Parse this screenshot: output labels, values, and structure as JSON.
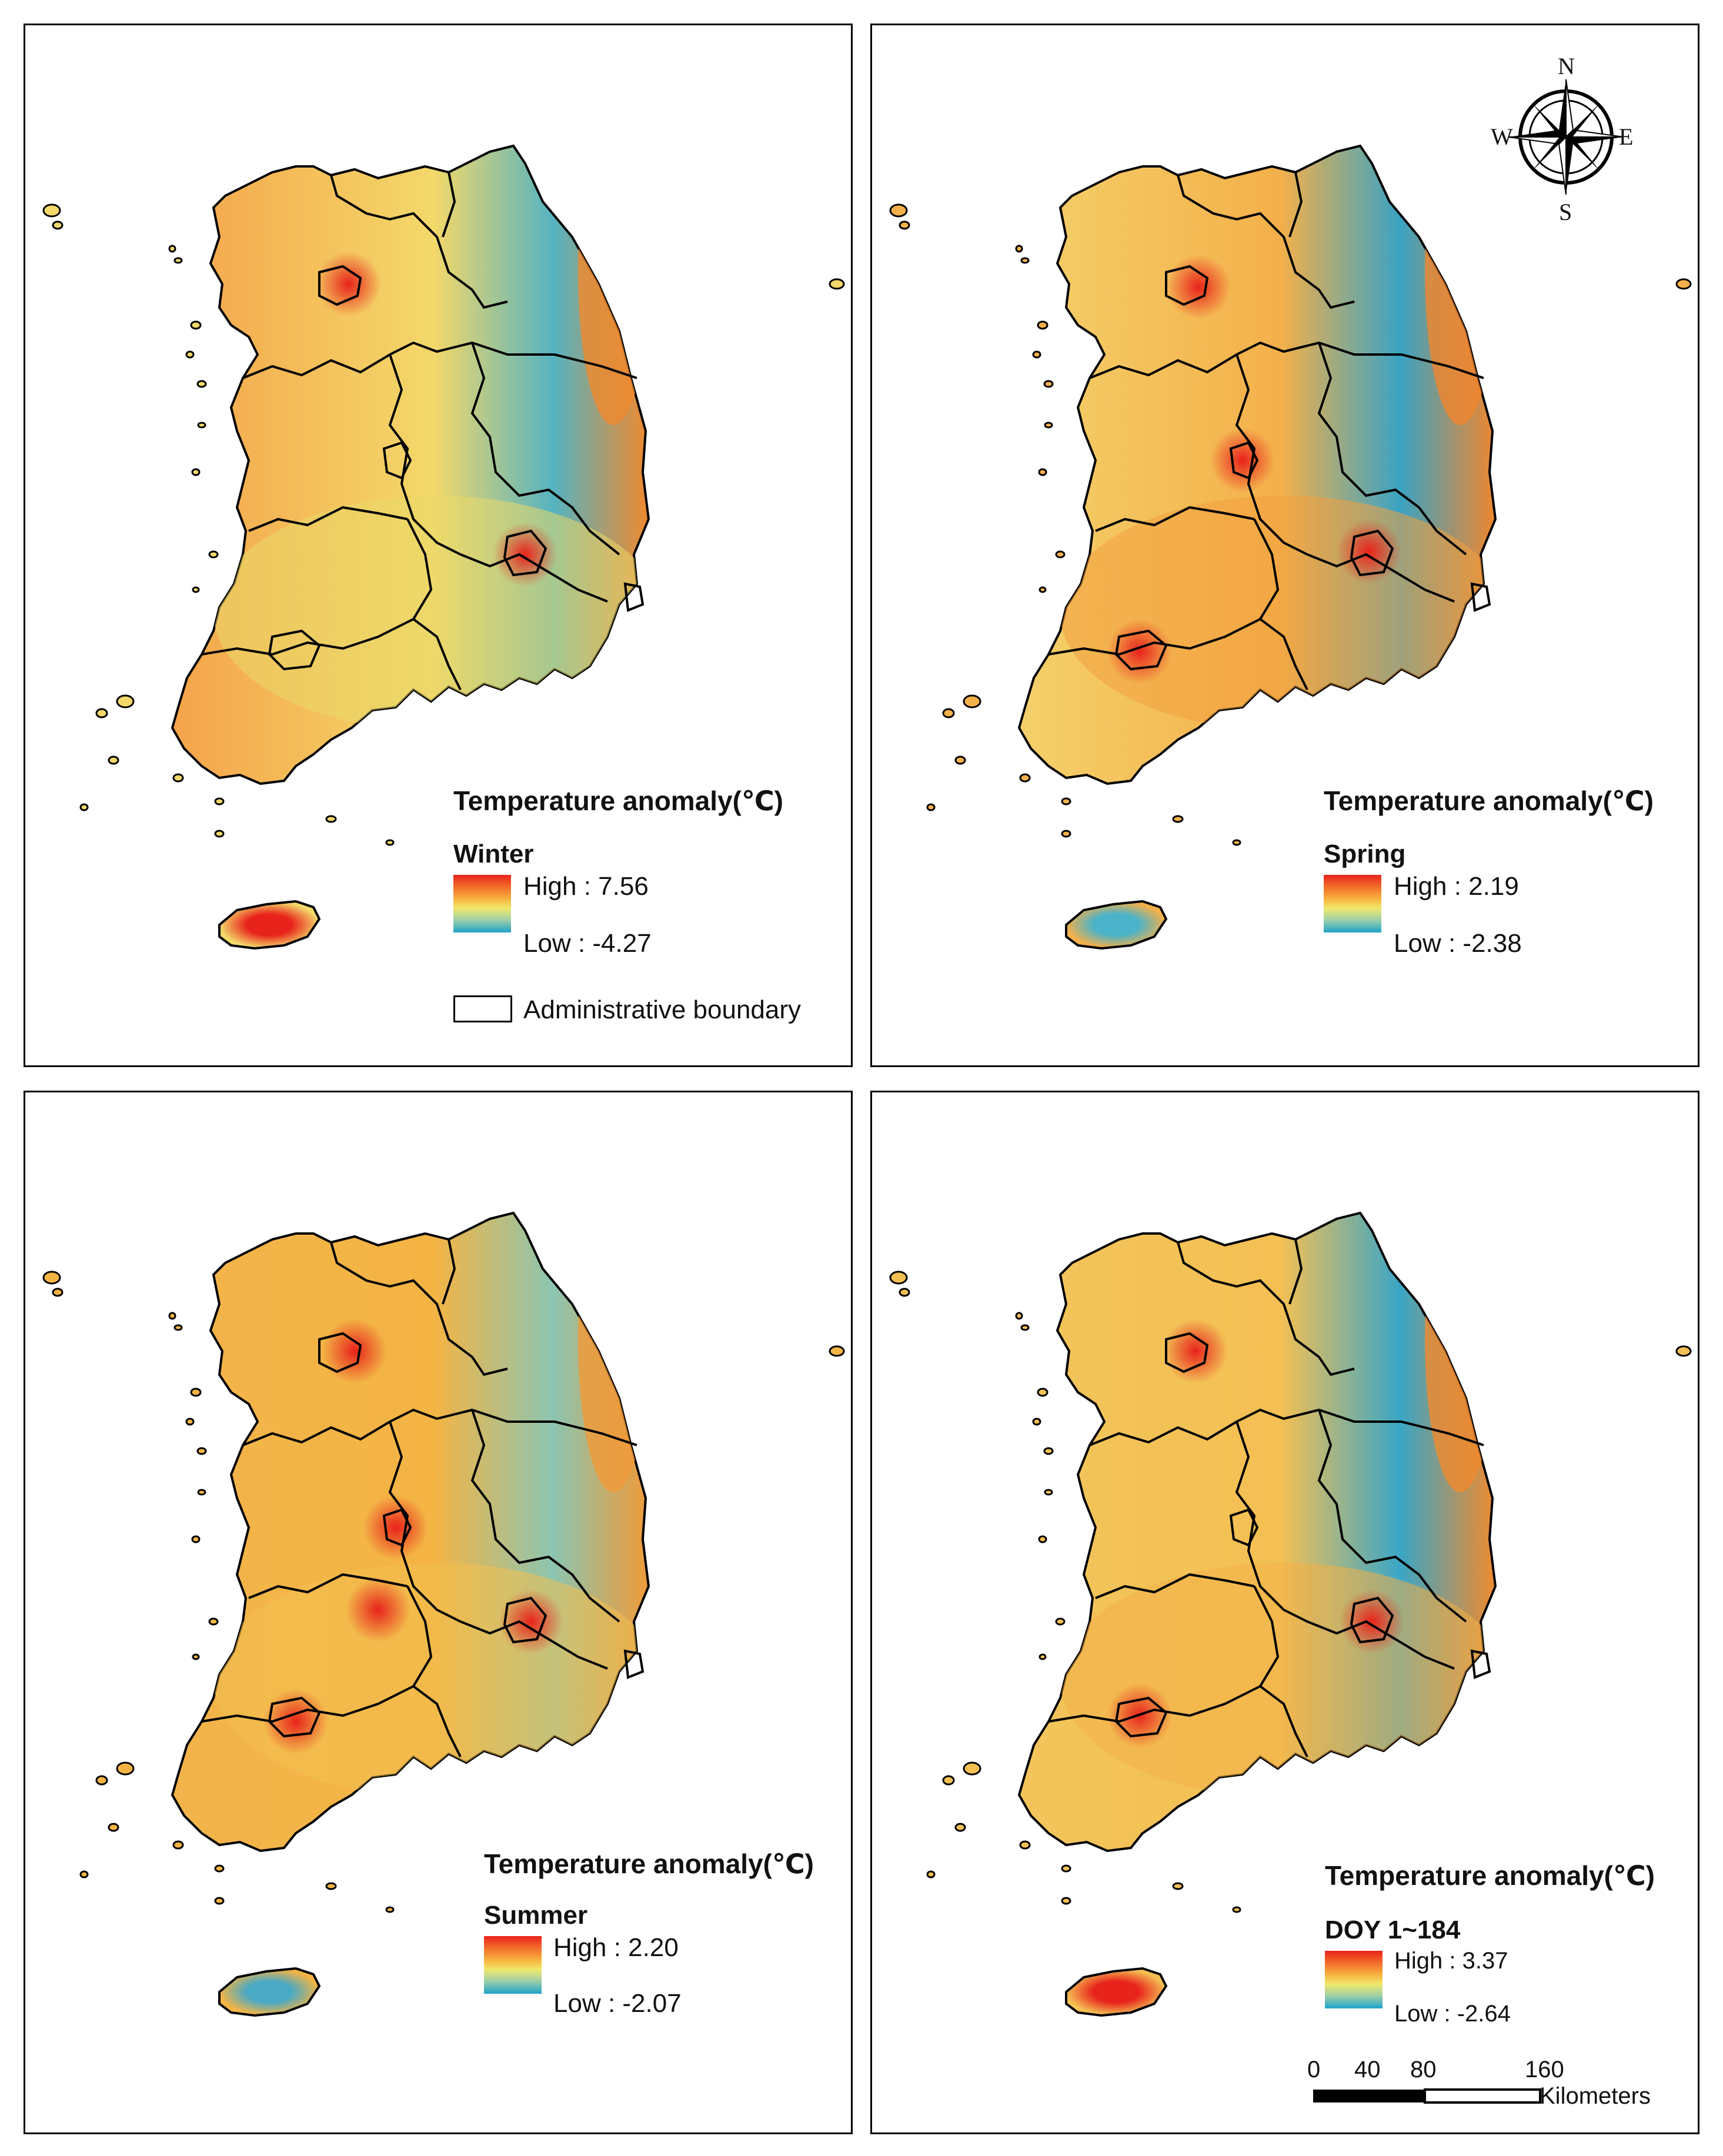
{
  "legend_heading": "Temperature anomaly(℃)",
  "colors": {
    "high": "#e8231b",
    "mid": "#f0e86a",
    "low": "#1ea3c9",
    "outline": "#000000"
  },
  "panels": [
    {
      "id": "winter",
      "season": "Winter",
      "high": "High : 7.56",
      "low": "Low : -4.27"
    },
    {
      "id": "spring",
      "season": "Spring",
      "high": "High : 2.19",
      "low": "Low : -2.38"
    },
    {
      "id": "summer",
      "season": "Summer",
      "high": "High : 2.20",
      "low": "Low : -2.07"
    },
    {
      "id": "doy",
      "season": "DOY 1~184",
      "high": "High : 3.37",
      "low": "Low : -2.64"
    }
  ],
  "boundary_legend": "Administrative boundary",
  "compass": {
    "n": "N",
    "e": "E",
    "s": "S",
    "w": "W",
    "icon": "compass-rose-icon"
  },
  "scale": {
    "ticks": [
      "0",
      "40",
      "80",
      "160"
    ],
    "unit": "Kilometers"
  }
}
